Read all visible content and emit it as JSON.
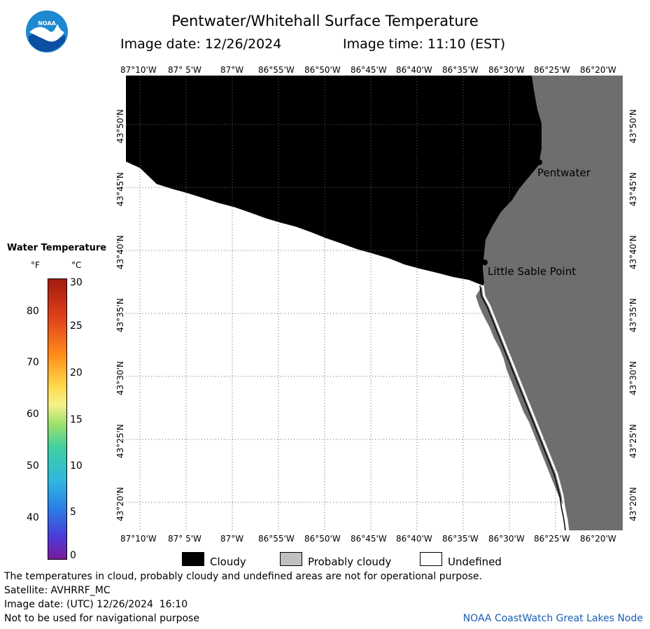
{
  "header": {
    "title": "Pentwater/Whitehall Surface Temperature",
    "image_date_label": "Image date: 12/26/2024",
    "image_time_label": "Image time: 11:10 (EST)"
  },
  "logo": {
    "text": "NOAA"
  },
  "map": {
    "lon_labels": [
      "87°10'W",
      "87° 5'W",
      "87°W",
      "86°55'W",
      "86°50'W",
      "86°45'W",
      "86°40'W",
      "86°35'W",
      "86°30'W",
      "86°25'W",
      "86°20'W"
    ],
    "lat_labels": [
      "43°50'N",
      "43°45'N",
      "43°40'N",
      "43°35'N",
      "43°30'N",
      "43°25'N",
      "43°20'N"
    ],
    "places": [
      {
        "name": "Pentwater"
      },
      {
        "name": "Little Sable Point"
      }
    ]
  },
  "legend": {
    "title": "Water Temperature",
    "unit_f": "°F",
    "unit_c": "°C",
    "f_ticks": [
      "80",
      "70",
      "60",
      "50",
      "40"
    ],
    "c_ticks": [
      "30",
      "25",
      "20",
      "15",
      "10",
      "5",
      "0"
    ]
  },
  "key": {
    "cloudy": "Cloudy",
    "probably_cloudy": "Probably cloudy",
    "undefined": "Undefined",
    "colors": {
      "cloudy": "#000000",
      "probably_cloudy": "#c0c0c0",
      "undefined": "#ffffff",
      "land": "#6e6e6e"
    }
  },
  "footer": {
    "disclaimer": "The temperatures in cloud, probably cloudy and undefined areas are not for operational purpose.",
    "satellite": "Satellite: AVHRRF_MC",
    "utc_date": "Image date: (UTC) 12/26/2024  16:10",
    "nav_warning": "Not to be used for navigational purpose",
    "credit": "NOAA CoastWatch Great Lakes Node"
  }
}
